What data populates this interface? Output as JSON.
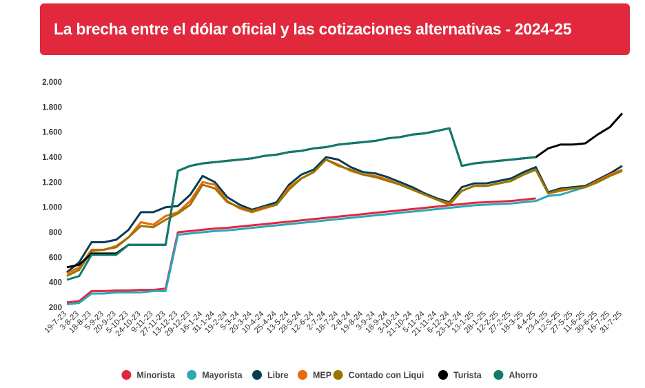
{
  "chart_data": {
    "type": "line",
    "title": "La brecha entre el dólar oficial y las cotizaciones alternativas - 2024-25",
    "categories": [
      "19-7-23",
      "3-8-23",
      "18-8-23",
      "5-9-23",
      "20-9-23",
      "5-10-23",
      "24-10-23",
      "9-11-23",
      "27-11-23",
      "13-12-23",
      "29-12-23",
      "16-1-24",
      "31-1-24",
      "19-2-24",
      "5-3-24",
      "20-3-24",
      "10-4-24",
      "25-4-24",
      "13-5-24",
      "28-5-24",
      "12-6-24",
      "2-7-24",
      "18-7-24",
      "2-8-24",
      "19-8-24",
      "3-9-24",
      "18-9-24",
      "3-10-24",
      "21-10-24",
      "5-11-24",
      "21-11-24",
      "6-12-24",
      "23-12-24",
      "13-1-25",
      "28-1-25",
      "12-2-25",
      "27-2-25",
      "18-3-25",
      "4-4-25",
      "23-4-25",
      "12-5-25",
      "27-5-25",
      "11-6-25",
      "30-6-25",
      "16-7-25",
      "31-7-25"
    ],
    "ylim": [
      200,
      2000
    ],
    "yticks": [
      200,
      400,
      600,
      800,
      {
        "value": 1000,
        "label": "1.000"
      },
      {
        "value": 1200,
        "label": "1.200"
      },
      {
        "value": 1400,
        "label": "1.400"
      },
      {
        "value": 1600,
        "label": "1.600"
      },
      {
        "value": 1800,
        "label": "1.800"
      },
      {
        "value": 2000,
        "label": "2.000"
      }
    ],
    "series": [
      {
        "name": "Minorista",
        "color": "#e0283c",
        "values": [
          240,
          250,
          330,
          330,
          335,
          335,
          340,
          340,
          350,
          800,
          810,
          820,
          830,
          835,
          845,
          855,
          865,
          875,
          885,
          895,
          905,
          915,
          925,
          935,
          945,
          955,
          965,
          975,
          985,
          995,
          1005,
          1015,
          1025,
          1035,
          1040,
          1045,
          1050,
          1060,
          1070,
          null,
          null,
          null,
          null,
          null,
          null,
          null
        ]
      },
      {
        "name": "Mayorista",
        "color": "#2aa8b8",
        "values": [
          225,
          235,
          310,
          310,
          320,
          320,
          320,
          330,
          330,
          780,
          790,
          800,
          810,
          815,
          825,
          835,
          845,
          855,
          865,
          875,
          885,
          895,
          905,
          915,
          925,
          935,
          945,
          955,
          965,
          975,
          985,
          995,
          1005,
          1015,
          1020,
          1025,
          1030,
          1040,
          1050,
          1090,
          1100,
          1130,
          1160,
          1200,
          1250,
          1300
        ]
      },
      {
        "name": "Libre",
        "color": "#083c50",
        "values": [
          480,
          560,
          720,
          720,
          740,
          820,
          960,
          960,
          1000,
          1010,
          1100,
          1250,
          1200,
          1080,
          1020,
          980,
          1010,
          1040,
          1180,
          1260,
          1300,
          1400,
          1380,
          1320,
          1280,
          1270,
          1240,
          1200,
          1160,
          1110,
          1070,
          1040,
          1160,
          1190,
          1190,
          1210,
          1230,
          1280,
          1320,
          1120,
          1150,
          1160,
          1170,
          1220,
          1270,
          1330
        ]
      },
      {
        "name": "MEP",
        "color": "#e86a0a",
        "values": [
          470,
          520,
          660,
          660,
          690,
          760,
          880,
          860,
          930,
          960,
          1050,
          1200,
          1180,
          1050,
          990,
          960,
          990,
          1020,
          1160,
          1230,
          1280,
          1380,
          1340,
          1290,
          1260,
          1250,
          1220,
          1180,
          1140,
          1100,
          1060,
          1030,
          1130,
          1170,
          1170,
          1190,
          1210,
          1260,
          1300,
          1110,
          1130,
          1150,
          1160,
          1210,
          1260,
          1300
        ]
      },
      {
        "name": "Contado con Liqui",
        "color": "#9a7400",
        "values": [
          450,
          500,
          650,
          660,
          680,
          760,
          850,
          840,
          900,
          950,
          1020,
          1180,
          1150,
          1040,
          1000,
          970,
          1000,
          1020,
          1140,
          1230,
          1280,
          1380,
          1330,
          1300,
          1260,
          1240,
          1210,
          1180,
          1140,
          1100,
          1060,
          1020,
          1130,
          1170,
          1170,
          1190,
          1210,
          1260,
          1300,
          1110,
          1140,
          1150,
          1160,
          1200,
          1250,
          1290
        ]
      },
      {
        "name": "Turista",
        "color": "#000000",
        "values": [
          520,
          540,
          630,
          630,
          630,
          700,
          700,
          700,
          700,
          1290,
          1330,
          1350,
          1360,
          1370,
          1380,
          1390,
          1410,
          1420,
          1440,
          1450,
          1470,
          1480,
          1500,
          1510,
          1520,
          1530,
          1550,
          1560,
          1580,
          1590,
          1610,
          1630,
          1330,
          1350,
          1360,
          1370,
          1380,
          1390,
          1400,
          1470,
          1500,
          1500,
          1510,
          1580,
          1640,
          1750
        ]
      },
      {
        "name": "Ahorro",
        "color": "#107a6a",
        "values": [
          420,
          450,
          620,
          620,
          620,
          700,
          700,
          700,
          700,
          1290,
          1330,
          1350,
          1360,
          1370,
          1380,
          1390,
          1410,
          1420,
          1440,
          1450,
          1470,
          1480,
          1500,
          1510,
          1520,
          1530,
          1550,
          1560,
          1580,
          1590,
          1610,
          1630,
          1330,
          1350,
          1360,
          1370,
          1380,
          1390,
          1400,
          null,
          null,
          null,
          null,
          null,
          null,
          null
        ]
      }
    ]
  }
}
